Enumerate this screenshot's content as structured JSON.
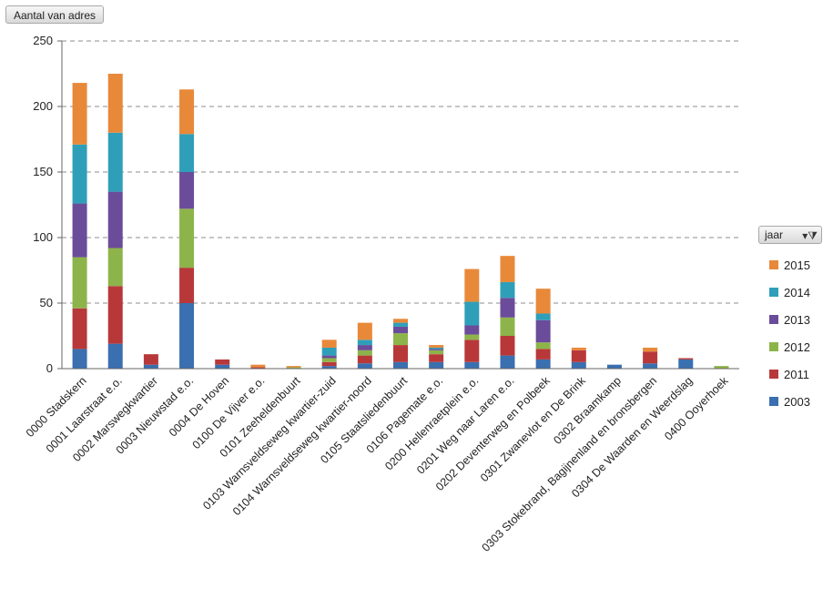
{
  "field_button_label": "Aantal van adres",
  "legend": {
    "field_label": "jaar",
    "filter_icon": "filter-icon"
  },
  "chart_data": {
    "type": "bar",
    "stacked": true,
    "ylabel": "",
    "xlabel": "",
    "ylim": [
      0,
      250
    ],
    "yticks": [
      0,
      50,
      100,
      150,
      200,
      250
    ],
    "grid": true,
    "legend_position": "right",
    "categories": [
      "0000 Stadskern",
      "0001 Laarstraat e.o.",
      "0002 Marswegkwartier",
      "0003 Nieuwstad e.o.",
      "0004 De Hoven",
      "0100 De Vijver e.o.",
      "0101 Zeeheldenbuurt",
      "0103 Warnsveldseweg kwartier-zuid",
      "0104 Warnsveldseweg kwartier-noord",
      "0105 Staatsliedenbuurt",
      "0106 Pagemate e.o.",
      "0200 Hellenraetplein e.o.",
      "0201 Weg naar Laren e.o.",
      "0202 Deventerweg en Polbeek",
      "0301 Zwanevlot en De Brink",
      "0302 Braamkamp",
      "0303 Stokebrand, Bagijnenland en bronsbergen",
      "0304 De Waarden en Weerdslag",
      "0400 Ooyerhoek"
    ],
    "series": [
      {
        "name": "2003",
        "color": "#3a6fb0",
        "values": [
          15,
          19,
          3,
          50,
          3,
          0,
          0,
          2,
          4,
          5,
          5,
          5,
          10,
          7,
          5,
          3,
          4,
          7,
          0
        ]
      },
      {
        "name": "2011",
        "color": "#b8383a",
        "values": [
          31,
          44,
          8,
          27,
          4,
          1,
          0,
          3,
          6,
          13,
          6,
          17,
          15,
          8,
          9,
          0,
          9,
          1,
          0
        ]
      },
      {
        "name": "2012",
        "color": "#8db44a",
        "values": [
          39,
          29,
          0,
          45,
          0,
          0,
          1,
          3,
          4,
          9,
          3,
          4,
          14,
          5,
          0,
          0,
          0,
          0,
          2
        ]
      },
      {
        "name": "2013",
        "color": "#6b4c9a",
        "values": [
          41,
          43,
          0,
          28,
          0,
          0,
          0,
          2,
          4,
          5,
          1,
          7,
          15,
          17,
          0,
          0,
          0,
          0,
          0
        ]
      },
      {
        "name": "2014",
        "color": "#2f9fb9",
        "values": [
          45,
          45,
          0,
          29,
          0,
          0,
          0,
          6,
          4,
          3,
          1,
          18,
          12,
          5,
          0,
          0,
          0,
          0,
          0
        ]
      },
      {
        "name": "2015",
        "color": "#e8893a",
        "values": [
          47,
          45,
          0,
          34,
          0,
          2,
          1,
          6,
          13,
          3,
          2,
          25,
          20,
          19,
          2,
          0,
          3,
          0,
          0
        ]
      }
    ]
  }
}
